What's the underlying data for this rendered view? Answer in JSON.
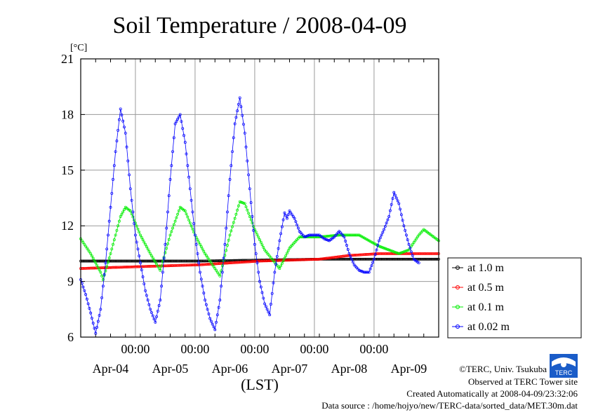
{
  "chart_data": {
    "type": "line",
    "title": "Soil Temperature / 2008-04-09",
    "ylabel": "[°C]",
    "xlabel": "(LST)",
    "ylim": [
      6,
      21
    ],
    "yticks": [
      6,
      9,
      12,
      15,
      18,
      21
    ],
    "xlim_hours": [
      0,
      144
    ],
    "time_tick_label": "00:00",
    "time_tick_hours": [
      22,
      46,
      70,
      94,
      118
    ],
    "date_labels": [
      "Apr-04",
      "Apr-05",
      "Apr-06",
      "Apr-07",
      "Apr-08",
      "Apr-09"
    ],
    "grid": true,
    "legend_position": "right",
    "series": [
      {
        "name": "at 1.0 m",
        "color": "#000000",
        "points": [
          [
            0,
            10.1
          ],
          [
            24,
            10.1
          ],
          [
            48,
            10.1
          ],
          [
            72,
            10.15
          ],
          [
            96,
            10.2
          ],
          [
            120,
            10.2
          ],
          [
            144,
            10.2
          ]
        ]
      },
      {
        "name": "at 0.5 m",
        "color": "#ff0000",
        "points": [
          [
            0,
            9.7
          ],
          [
            24,
            9.8
          ],
          [
            48,
            9.9
          ],
          [
            72,
            10.1
          ],
          [
            96,
            10.2
          ],
          [
            108,
            10.4
          ],
          [
            120,
            10.5
          ],
          [
            144,
            10.5
          ]
        ]
      },
      {
        "name": "at 0.1 m",
        "color": "#00ee00",
        "points": [
          [
            0,
            11.3
          ],
          [
            4,
            10.5
          ],
          [
            8,
            9.5
          ],
          [
            9,
            9.1
          ],
          [
            12,
            10.5
          ],
          [
            16,
            12.5
          ],
          [
            18,
            13.0
          ],
          [
            20,
            12.8
          ],
          [
            24,
            11.5
          ],
          [
            28,
            10.5
          ],
          [
            32,
            9.6
          ],
          [
            36,
            11.5
          ],
          [
            40,
            13.0
          ],
          [
            42,
            12.8
          ],
          [
            46,
            11.5
          ],
          [
            50,
            10.5
          ],
          [
            56,
            9.3
          ],
          [
            60,
            11.5
          ],
          [
            64,
            13.3
          ],
          [
            66,
            13.2
          ],
          [
            70,
            11.8
          ],
          [
            74,
            10.7
          ],
          [
            80,
            9.7
          ],
          [
            84,
            10.8
          ],
          [
            88,
            11.4
          ],
          [
            96,
            11.4
          ],
          [
            104,
            11.5
          ],
          [
            112,
            11.5
          ],
          [
            120,
            10.9
          ],
          [
            128,
            10.5
          ],
          [
            132,
            10.7
          ],
          [
            136,
            11.5
          ],
          [
            138,
            11.8
          ],
          [
            140,
            11.6
          ],
          [
            144,
            11.2
          ]
        ]
      },
      {
        "name": "at 0.02 m",
        "color": "#0000ff",
        "points": [
          [
            0,
            9.1
          ],
          [
            2,
            8.3
          ],
          [
            4,
            7.3
          ],
          [
            6,
            6.2
          ],
          [
            8,
            7.5
          ],
          [
            10,
            10.0
          ],
          [
            12,
            13.0
          ],
          [
            14,
            16.0
          ],
          [
            16,
            18.3
          ],
          [
            18,
            17.0
          ],
          [
            20,
            14.0
          ],
          [
            22,
            11.5
          ],
          [
            24,
            10.0
          ],
          [
            26,
            8.5
          ],
          [
            28,
            7.5
          ],
          [
            30,
            6.8
          ],
          [
            32,
            8.0
          ],
          [
            34,
            11.0
          ],
          [
            36,
            14.5
          ],
          [
            38,
            17.5
          ],
          [
            40,
            18.0
          ],
          [
            42,
            16.5
          ],
          [
            44,
            14.0
          ],
          [
            46,
            11.5
          ],
          [
            48,
            9.5
          ],
          [
            50,
            8.0
          ],
          [
            52,
            7.0
          ],
          [
            54,
            6.4
          ],
          [
            56,
            8.0
          ],
          [
            58,
            11.0
          ],
          [
            60,
            14.5
          ],
          [
            62,
            17.5
          ],
          [
            64,
            18.9
          ],
          [
            66,
            17.0
          ],
          [
            68,
            14.0
          ],
          [
            70,
            11.0
          ],
          [
            72,
            9.0
          ],
          [
            74,
            7.8
          ],
          [
            76,
            7.2
          ],
          [
            78,
            9.5
          ],
          [
            80,
            11.2
          ],
          [
            82,
            12.7
          ],
          [
            83,
            12.4
          ],
          [
            84,
            12.8
          ],
          [
            86,
            12.4
          ],
          [
            88,
            11.7
          ],
          [
            90,
            11.4
          ],
          [
            92,
            11.5
          ],
          [
            96,
            11.5
          ],
          [
            98,
            11.3
          ],
          [
            100,
            11.2
          ],
          [
            102,
            11.4
          ],
          [
            104,
            11.7
          ],
          [
            106,
            11.4
          ],
          [
            108,
            10.5
          ],
          [
            110,
            9.9
          ],
          [
            112,
            9.6
          ],
          [
            114,
            9.5
          ],
          [
            116,
            9.5
          ],
          [
            118,
            10.2
          ],
          [
            120,
            11.2
          ],
          [
            122,
            11.8
          ],
          [
            124,
            12.5
          ],
          [
            126,
            13.8
          ],
          [
            128,
            13.2
          ],
          [
            130,
            12.0
          ],
          [
            132,
            11.0
          ],
          [
            134,
            10.2
          ],
          [
            136,
            10.0
          ]
        ]
      }
    ]
  },
  "credits": {
    "copyright": "©TERC, Univ. Tsukuba",
    "observed": "Observed at TERC Tower site",
    "created": "Created Automatically at 2008-04-09/23:32:06",
    "source": "Data source : /home/hojyo/new/TERC-data/sorted_data/MET.30m.dat"
  },
  "logo": {
    "text": "TERC",
    "color": "#1a5cc8"
  }
}
